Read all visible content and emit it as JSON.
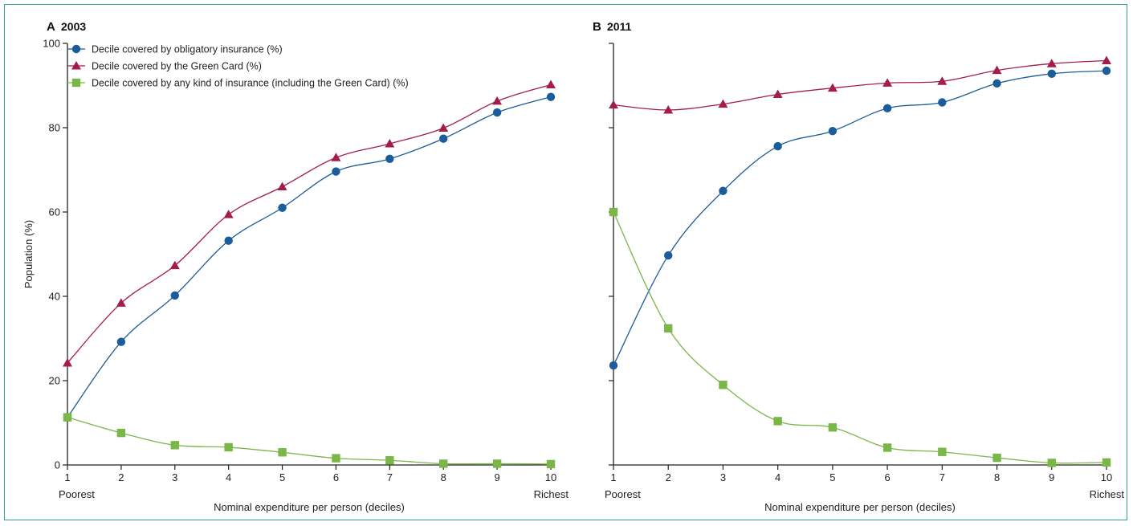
{
  "chart_data": [
    {
      "type": "line",
      "panel_letter": "A",
      "panel_year": "2003",
      "xlabel": "Nominal expenditure per person (deciles)",
      "ylabel": "Population (%)",
      "ylim": [
        0,
        100
      ],
      "xlim": [
        1,
        10
      ],
      "x": [
        1,
        2,
        3,
        4,
        5,
        6,
        7,
        8,
        9,
        10
      ],
      "x_ticks": [
        "1",
        "2",
        "3",
        "4",
        "5",
        "6",
        "7",
        "8",
        "9",
        "10"
      ],
      "x_end_labels": {
        "left": "Poorest",
        "right": "Richest"
      },
      "y_ticks": [
        "0",
        "20",
        "40",
        "60",
        "80",
        "100"
      ],
      "show_y_tick_labels": true,
      "grid": false,
      "legend_position": "top-left",
      "series": [
        {
          "name": "Decile covered by obligatory insurance (%)",
          "marker": "circle",
          "color": "#1a5d9a",
          "values": [
            11.3,
            29.2,
            40.2,
            53.2,
            61.0,
            69.6,
            72.6,
            77.4,
            83.6,
            87.3
          ]
        },
        {
          "name": "Decile covered by the Green Card (%)",
          "marker": "triangle",
          "color": "#a31d4b",
          "values": [
            24.2,
            38.4,
            47.3,
            59.4,
            66.0,
            72.9,
            76.2,
            79.9,
            86.3,
            90.2
          ]
        },
        {
          "name": "Decile covered by any kind of insurance (including the Green Card) (%)",
          "marker": "square",
          "color": "#7ab648",
          "values": [
            11.3,
            7.6,
            4.7,
            4.2,
            3.0,
            1.6,
            1.1,
            0.3,
            0.3,
            0.2
          ]
        }
      ]
    },
    {
      "type": "line",
      "panel_letter": "B",
      "panel_year": "2011",
      "xlabel": "Nominal expenditure per person (deciles)",
      "ylabel": "",
      "ylim": [
        0,
        100
      ],
      "xlim": [
        1,
        10
      ],
      "x": [
        1,
        2,
        3,
        4,
        5,
        6,
        7,
        8,
        9,
        10
      ],
      "x_ticks": [
        "1",
        "2",
        "3",
        "4",
        "5",
        "6",
        "7",
        "8",
        "9",
        "10"
      ],
      "x_end_labels": {
        "left": "Poorest",
        "right": "Richest"
      },
      "y_ticks": [
        "0",
        "20",
        "40",
        "60",
        "80",
        "100"
      ],
      "show_y_tick_labels": false,
      "grid": false,
      "series": [
        {
          "name": "Decile covered by obligatory insurance (%)",
          "marker": "circle",
          "color": "#1a5d9a",
          "values": [
            23.6,
            49.7,
            65.0,
            75.6,
            79.2,
            84.6,
            86.0,
            90.5,
            92.8,
            93.5
          ]
        },
        {
          "name": "Decile covered by the Green Card (%)",
          "marker": "triangle",
          "color": "#a31d4b",
          "values": [
            85.4,
            84.2,
            85.6,
            87.9,
            89.4,
            90.6,
            91.0,
            93.6,
            95.2,
            95.9
          ]
        },
        {
          "name": "Decile covered by any kind of insurance (including the Green Card) (%)",
          "marker": "square",
          "color": "#7ab648",
          "values": [
            60.0,
            32.4,
            19.0,
            10.4,
            8.9,
            4.1,
            3.1,
            1.7,
            0.5,
            0.6
          ]
        }
      ]
    }
  ]
}
